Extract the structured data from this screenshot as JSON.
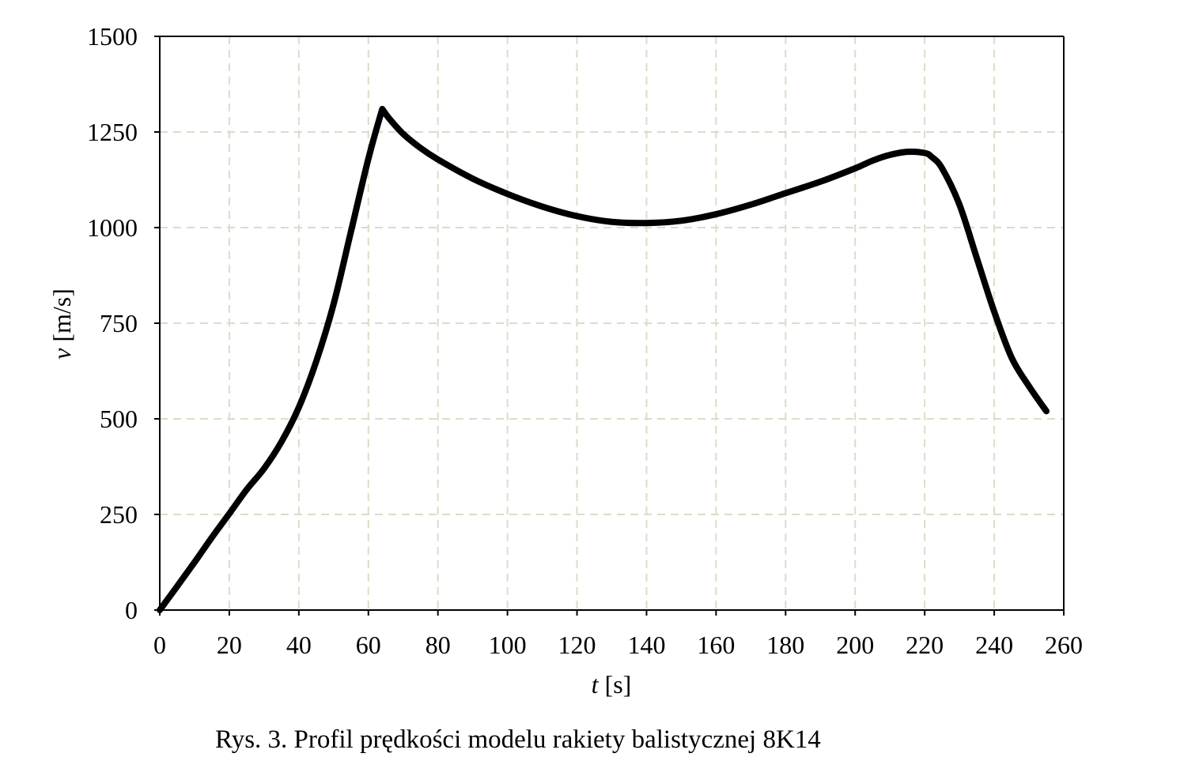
{
  "chart_data": {
    "type": "line",
    "xlabel": {
      "var": "t",
      "unit": " [s]"
    },
    "ylabel": {
      "var": "v",
      "unit": " [m/s]"
    },
    "xlim": [
      0,
      260
    ],
    "ylim": [
      0,
      1500
    ],
    "xticks": [
      0,
      20,
      40,
      60,
      80,
      100,
      120,
      140,
      160,
      180,
      200,
      220,
      240,
      260
    ],
    "yticks": [
      0,
      250,
      500,
      750,
      1000,
      1250,
      1500
    ],
    "grid": true,
    "grid_style": "dashed",
    "series": [
      {
        "color": "#000000",
        "x": [
          0,
          5,
          10,
          15,
          20,
          25,
          30,
          35,
          40,
          45,
          50,
          55,
          60,
          64,
          66,
          70,
          75,
          80,
          90,
          100,
          110,
          120,
          130,
          140,
          150,
          160,
          170,
          180,
          190,
          200,
          205,
          210,
          215,
          220,
          222,
          225,
          230,
          235,
          240,
          245,
          250,
          255
        ],
        "y": [
          0,
          62,
          125,
          190,
          252,
          315,
          370,
          440,
          530,
          650,
          800,
          990,
          1180,
          1310,
          1285,
          1245,
          1208,
          1178,
          1128,
          1088,
          1055,
          1030,
          1015,
          1012,
          1018,
          1035,
          1060,
          1090,
          1120,
          1155,
          1175,
          1190,
          1198,
          1195,
          1185,
          1155,
          1060,
          920,
          780,
          660,
          585,
          520
        ]
      }
    ]
  },
  "caption": "Rys. 3. Profil prędkości modelu rakiety balistycznej 8K14"
}
